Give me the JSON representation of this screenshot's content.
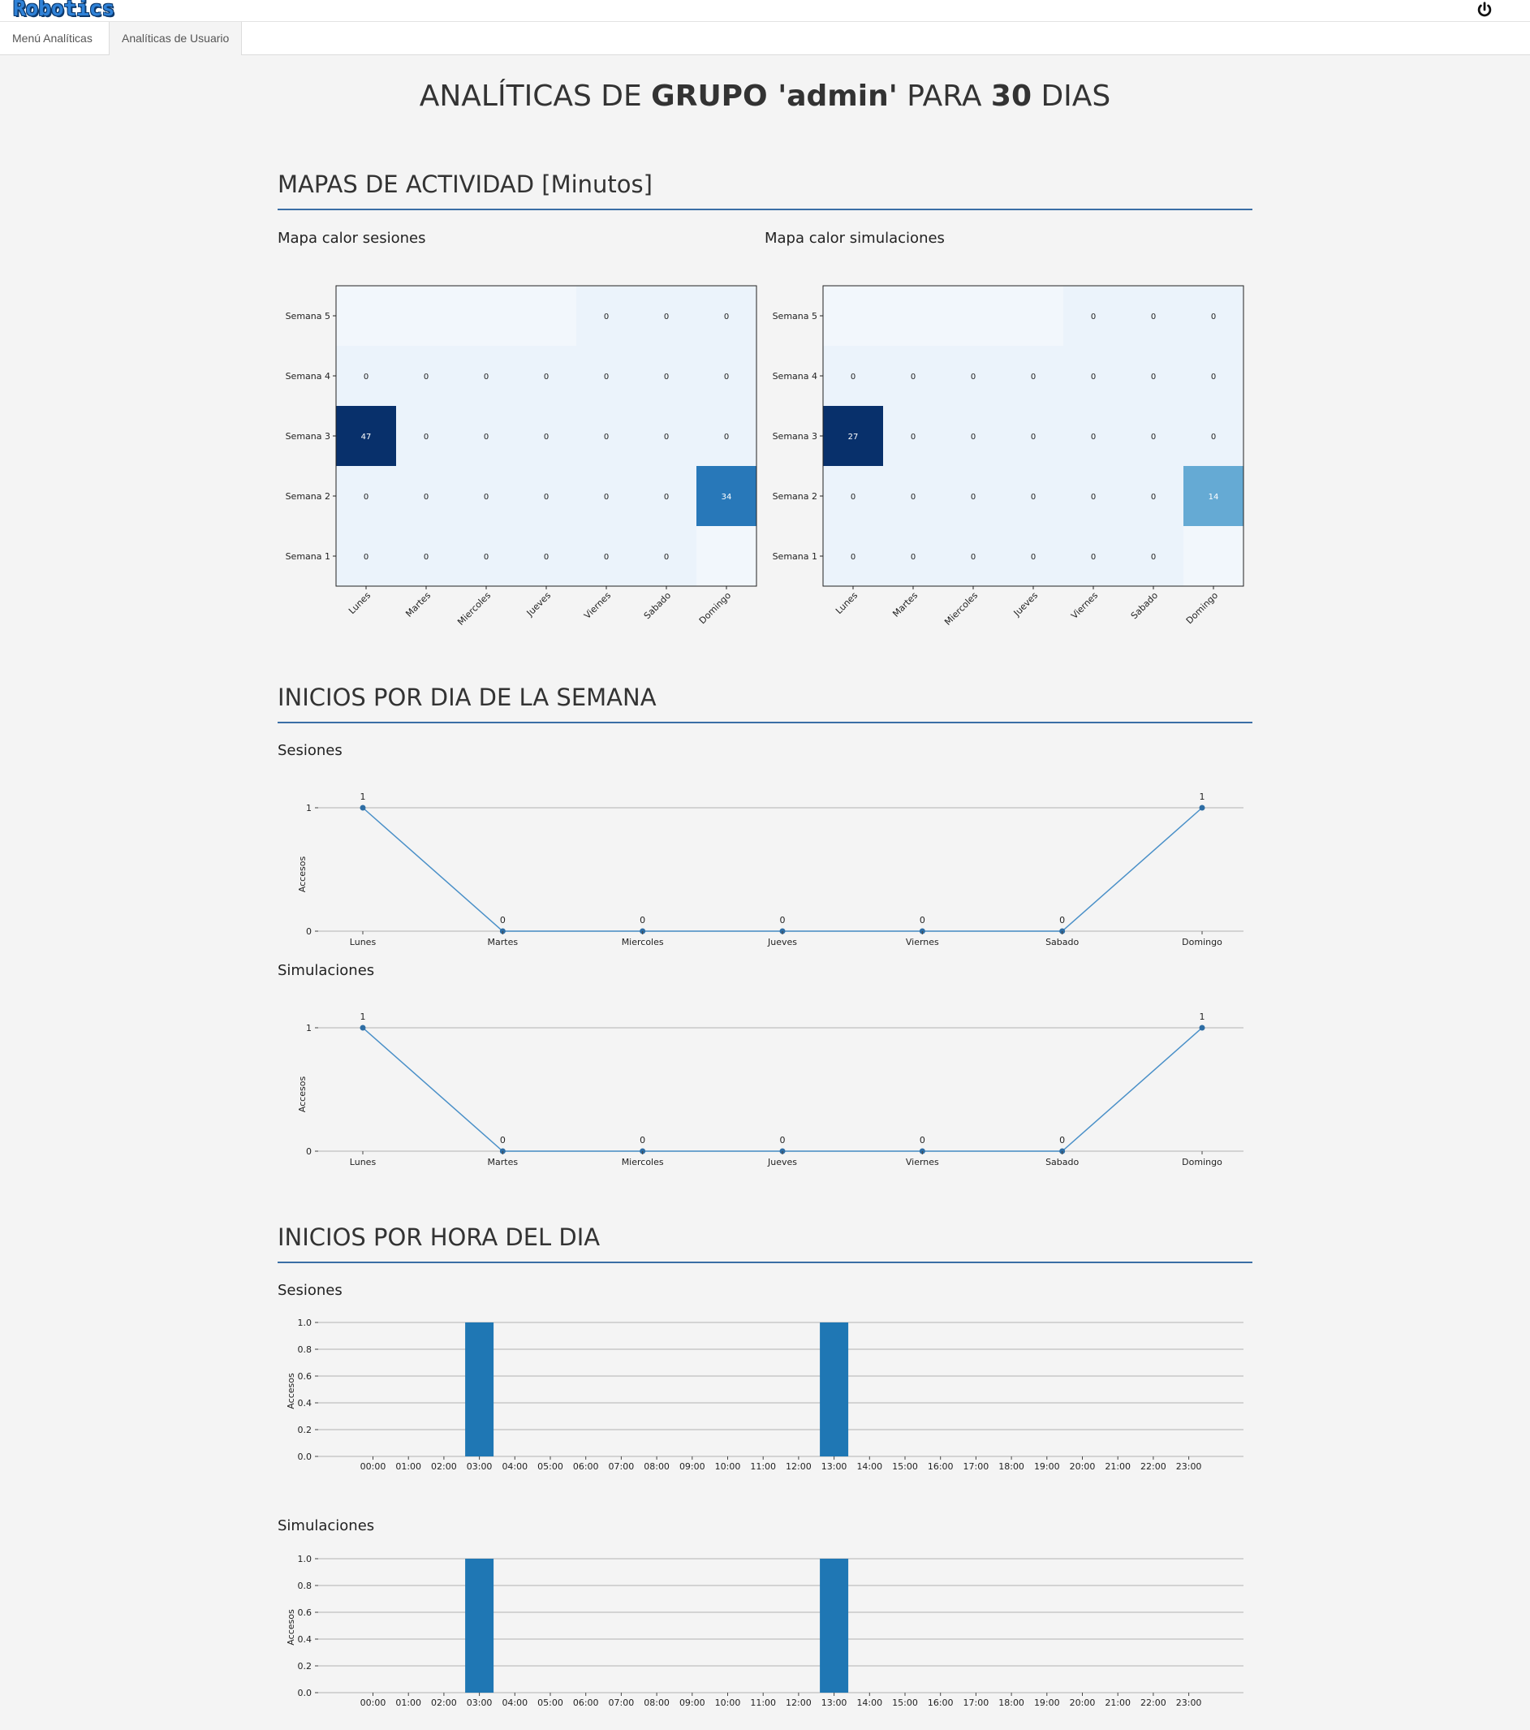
{
  "header": {
    "logo_text": "Robotics",
    "power_icon": "power-icon"
  },
  "tabs": [
    {
      "label": "Menú Analíticas",
      "active": false
    },
    {
      "label": "Analíticas de Usuario",
      "active": true
    }
  ],
  "title": {
    "prefix": "ANALÍTICAS DE ",
    "group_label": "GRUPO 'admin'",
    "middle": " PARA ",
    "days": "30",
    "suffix": " DIAS"
  },
  "sections": {
    "activity": {
      "title": "MAPAS DE ACTIVIDAD [Minutos]",
      "heat_sessions_title": "Mapa calor sesiones",
      "heat_sims_title": "Mapa calor simulaciones"
    },
    "weekday": {
      "title": "INICIOS POR DIA DE LA SEMANA",
      "sessions_title": "Sesiones",
      "sims_title": "Simulaciones"
    },
    "hour": {
      "title": "INICIOS POR HORA DEL DIA",
      "sessions_title": "Sesiones",
      "sims_title": "Simulaciones"
    }
  },
  "colors": {
    "accent_rule": "#3a6ea5",
    "bar": "#1f77b4",
    "line": "#4a90c8",
    "heat_low": "#f7fbff",
    "heat_high": "#08306b"
  },
  "chart_data": [
    {
      "type": "heatmap",
      "title": "Mapa calor sesiones",
      "x": [
        "Lunes",
        "Martes",
        "Miercoles",
        "Jueves",
        "Viernes",
        "Sabado",
        "Domingo"
      ],
      "y": [
        "Semana 5",
        "Semana 4",
        "Semana 3",
        "Semana 2",
        "Semana 1"
      ],
      "values": [
        [
          null,
          null,
          null,
          null,
          0,
          0,
          0
        ],
        [
          0,
          0,
          0,
          0,
          0,
          0,
          0
        ],
        [
          47,
          0,
          0,
          0,
          0,
          0,
          0
        ],
        [
          0,
          0,
          0,
          0,
          0,
          0,
          34
        ],
        [
          0,
          0,
          0,
          0,
          0,
          0,
          null
        ]
      ],
      "vmax": 47
    },
    {
      "type": "heatmap",
      "title": "Mapa calor simulaciones",
      "x": [
        "Lunes",
        "Martes",
        "Miercoles",
        "Jueves",
        "Viernes",
        "Sabado",
        "Domingo"
      ],
      "y": [
        "Semana 5",
        "Semana 4",
        "Semana 3",
        "Semana 2",
        "Semana 1"
      ],
      "values": [
        [
          null,
          null,
          null,
          null,
          0,
          0,
          0
        ],
        [
          0,
          0,
          0,
          0,
          0,
          0,
          0
        ],
        [
          27,
          0,
          0,
          0,
          0,
          0,
          0
        ],
        [
          0,
          0,
          0,
          0,
          0,
          0,
          14
        ],
        [
          0,
          0,
          0,
          0,
          0,
          0,
          null
        ]
      ],
      "vmax": 27
    },
    {
      "type": "line",
      "title": "Sesiones",
      "categories": [
        "Lunes",
        "Martes",
        "Miercoles",
        "Jueves",
        "Viernes",
        "Sabado",
        "Domingo"
      ],
      "values": [
        1,
        0,
        0,
        0,
        0,
        0,
        1
      ],
      "ylabel": "Accesos",
      "ylim": [
        0,
        1
      ],
      "yticks": [
        "0",
        "1"
      ],
      "grid": true
    },
    {
      "type": "line",
      "title": "Simulaciones",
      "categories": [
        "Lunes",
        "Martes",
        "Miercoles",
        "Jueves",
        "Viernes",
        "Sabado",
        "Domingo"
      ],
      "values": [
        1,
        0,
        0,
        0,
        0,
        0,
        1
      ],
      "ylabel": "Accesos",
      "ylim": [
        0,
        1
      ],
      "yticks": [
        "0",
        "1"
      ],
      "grid": true
    },
    {
      "type": "bar",
      "title": "Sesiones",
      "categories": [
        "00:00",
        "01:00",
        "02:00",
        "03:00",
        "04:00",
        "05:00",
        "06:00",
        "07:00",
        "08:00",
        "09:00",
        "10:00",
        "11:00",
        "12:00",
        "13:00",
        "14:00",
        "15:00",
        "16:00",
        "17:00",
        "18:00",
        "19:00",
        "20:00",
        "21:00",
        "22:00",
        "23:00"
      ],
      "values": [
        0,
        0,
        0,
        1,
        0,
        0,
        0,
        0,
        0,
        0,
        0,
        0,
        0,
        1,
        0,
        0,
        0,
        0,
        0,
        0,
        0,
        0,
        0,
        0
      ],
      "ylabel": "Accesos",
      "ylim": [
        0,
        1
      ],
      "yticks": [
        "0.0",
        "0.2",
        "0.4",
        "0.6",
        "0.8",
        "1.0"
      ],
      "grid": true
    },
    {
      "type": "bar",
      "title": "Simulaciones",
      "categories": [
        "00:00",
        "01:00",
        "02:00",
        "03:00",
        "04:00",
        "05:00",
        "06:00",
        "07:00",
        "08:00",
        "09:00",
        "10:00",
        "11:00",
        "12:00",
        "13:00",
        "14:00",
        "15:00",
        "16:00",
        "17:00",
        "18:00",
        "19:00",
        "20:00",
        "21:00",
        "22:00",
        "23:00"
      ],
      "values": [
        0,
        0,
        0,
        1,
        0,
        0,
        0,
        0,
        0,
        0,
        0,
        0,
        0,
        1,
        0,
        0,
        0,
        0,
        0,
        0,
        0,
        0,
        0,
        0
      ],
      "ylabel": "Accesos",
      "ylim": [
        0,
        1
      ],
      "yticks": [
        "0.0",
        "0.2",
        "0.4",
        "0.6",
        "0.8",
        "1.0"
      ],
      "grid": true
    }
  ]
}
